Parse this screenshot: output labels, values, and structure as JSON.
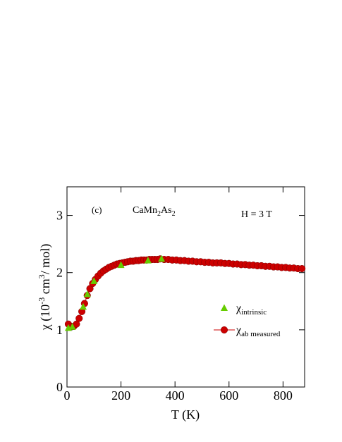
{
  "chart_data": {
    "type": "line",
    "annotations": {
      "panel": "(c)",
      "compound_parts": [
        "CaMn",
        "2",
        "As",
        "2"
      ],
      "field": "H = 3 T"
    },
    "x_label": "T (K)",
    "y_label_parts": [
      "χ (10",
      "-3",
      " cm",
      "3",
      "/ mol)"
    ],
    "xlim": [
      0,
      880
    ],
    "ylim": [
      0,
      3.5
    ],
    "xticks": [
      0,
      200,
      400,
      600,
      800
    ],
    "yticks": [
      0,
      1,
      2,
      3
    ],
    "legend": "right",
    "series": [
      {
        "name": "χ",
        "name_sub": "intrinsic",
        "color": "#66cc00",
        "marker": "triangle",
        "x": [
          5,
          20,
          60,
          75,
          100,
          200,
          300,
          350
        ],
        "values": [
          1.03,
          1.05,
          1.4,
          1.62,
          1.85,
          2.13,
          2.21,
          2.24
        ]
      },
      {
        "name": "χ",
        "name_sub": "ab measured",
        "color": "#cc0000",
        "marker": "circle",
        "x": [
          5,
          15,
          25,
          35,
          45,
          55,
          65,
          75,
          85,
          95,
          105,
          115,
          125,
          135,
          145,
          155,
          165,
          175,
          185,
          195,
          205,
          215,
          225,
          235,
          245,
          255,
          265,
          275,
          285,
          295,
          305,
          315,
          325,
          335,
          345,
          360,
          375,
          390,
          405,
          420,
          435,
          450,
          465,
          480,
          495,
          510,
          525,
          540,
          555,
          570,
          585,
          600,
          615,
          630,
          645,
          660,
          675,
          690,
          705,
          720,
          735,
          750,
          765,
          780,
          795,
          810,
          825,
          840,
          855,
          870
        ],
        "values": [
          1.1,
          1.06,
          1.06,
          1.1,
          1.2,
          1.32,
          1.46,
          1.6,
          1.72,
          1.81,
          1.88,
          1.94,
          1.99,
          2.03,
          2.06,
          2.09,
          2.11,
          2.13,
          2.15,
          2.16,
          2.17,
          2.18,
          2.19,
          2.2,
          2.2,
          2.21,
          2.21,
          2.22,
          2.22,
          2.22,
          2.23,
          2.23,
          2.23,
          2.23,
          2.24,
          2.23,
          2.23,
          2.22,
          2.22,
          2.21,
          2.21,
          2.2,
          2.2,
          2.19,
          2.19,
          2.18,
          2.18,
          2.17,
          2.17,
          2.17,
          2.16,
          2.16,
          2.15,
          2.15,
          2.14,
          2.14,
          2.13,
          2.13,
          2.12,
          2.12,
          2.11,
          2.11,
          2.1,
          2.1,
          2.09,
          2.09,
          2.08,
          2.08,
          2.07,
          2.07
        ]
      }
    ]
  }
}
